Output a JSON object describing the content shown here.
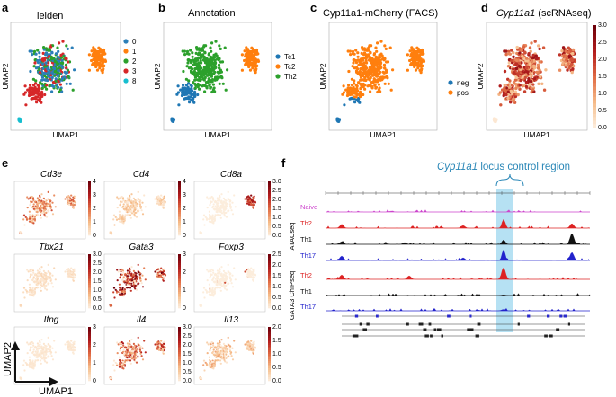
{
  "panels": {
    "a": {
      "letter": "a",
      "title": "leiden",
      "legend": [
        "0",
        "1",
        "2",
        "3",
        "8"
      ],
      "colors": [
        "#2c7fb8",
        "#ff7f0e",
        "#2ca02c",
        "#d62728",
        "#17becf"
      ]
    },
    "b": {
      "letter": "b",
      "title": "Annotation",
      "legend": [
        "Tc1",
        "Tc2",
        "Th2"
      ],
      "colors": [
        "#1f77b4",
        "#ff7f0e",
        "#2ca02c"
      ]
    },
    "c": {
      "letter": "c",
      "title": "Cyp11a1-mCherry (FACS)",
      "legend": [
        "neg",
        "pos"
      ],
      "colors": [
        "#1f77b4",
        "#ff7f0e"
      ]
    },
    "d": {
      "letter": "d",
      "title": "Cyp11a1",
      "title_suffix": " (scRNAseq)",
      "colorbar_ticks": [
        "3.0",
        "2.5",
        "2.0",
        "1.5",
        "1.0",
        "0.5",
        "0.0"
      ]
    },
    "e": {
      "letter": "e"
    },
    "f": {
      "letter": "f",
      "title_gene": "Cyp11a1",
      "title_rest": " locus control region"
    }
  },
  "axes": {
    "x": "UMAP1",
    "y": "UMAP2"
  },
  "genes": [
    {
      "name": "Cd3e",
      "ticks": [
        "4",
        "3",
        "2",
        "1",
        "0"
      ]
    },
    {
      "name": "Cd4",
      "ticks": [
        "4",
        "3",
        "2",
        "1",
        "0"
      ]
    },
    {
      "name": "Cd8a",
      "ticks": [
        "3.0",
        "2.5",
        "2.0",
        "1.5",
        "1.0",
        "0.5",
        "0.0"
      ]
    },
    {
      "name": "Tbx21",
      "ticks": [
        "3.0",
        "2.5",
        "2.0",
        "1.5",
        "1.0",
        "0.5",
        "0.0"
      ]
    },
    {
      "name": "Gata3",
      "ticks": [
        "3",
        "2",
        "1",
        "0"
      ]
    },
    {
      "name": "Foxp3",
      "ticks": [
        "2.5",
        "2.0",
        "1.5",
        "1.0",
        "0.5",
        "0.0"
      ]
    },
    {
      "name": "Ifng",
      "ticks": [
        "3",
        "2",
        "1",
        "0"
      ]
    },
    {
      "name": "Il4",
      "ticks": [
        "3.0",
        "2.5",
        "2.0",
        "1.5",
        "1.0",
        "0.5",
        "0.0"
      ]
    },
    {
      "name": "Il13",
      "ticks": [
        "2.0",
        "1.5",
        "1.0",
        "0.5",
        "0.0"
      ]
    }
  ],
  "tracks": {
    "group1": "ATACseq",
    "group2": "GATA3 ChIPseq",
    "atac": [
      {
        "name": "Naive",
        "color": "#cc44cc"
      },
      {
        "name": "Th2",
        "color": "#dd2222"
      },
      {
        "name": "Th1",
        "color": "#111111"
      },
      {
        "name": "Th17",
        "color": "#2222cc"
      }
    ],
    "chip": [
      {
        "name": "Th2",
        "color": "#dd2222"
      },
      {
        "name": "Th1",
        "color": "#111111"
      },
      {
        "name": "Th17",
        "color": "#2222cc"
      }
    ]
  }
}
